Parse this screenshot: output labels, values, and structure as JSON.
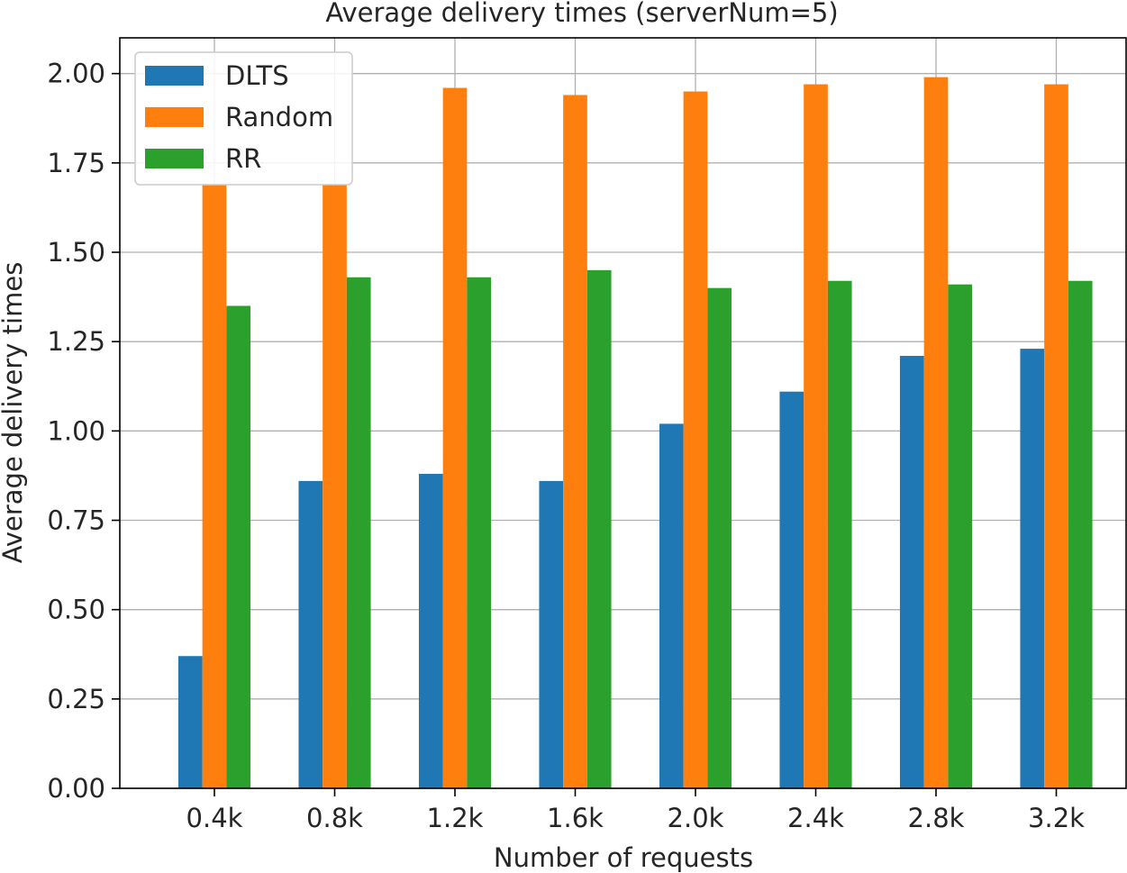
{
  "chart_data": {
    "type": "bar",
    "title": "Average delivery times (serverNum=5)",
    "xlabel": "Number of requests",
    "ylabel": "Average delivery times",
    "categories": [
      "0.4k",
      "0.8k",
      "1.2k",
      "1.6k",
      "2.0k",
      "2.4k",
      "2.8k",
      "3.2k"
    ],
    "series": [
      {
        "name": "DLTS",
        "color": "#1f77b4",
        "values": [
          0.37,
          0.86,
          0.88,
          0.86,
          1.02,
          1.11,
          1.21,
          1.23
        ]
      },
      {
        "name": "Random",
        "color": "#ff7f0e",
        "values": [
          1.69,
          1.69,
          1.96,
          1.94,
          1.95,
          1.97,
          1.99,
          1.97
        ]
      },
      {
        "name": "RR",
        "color": "#2ca02c",
        "values": [
          1.35,
          1.43,
          1.43,
          1.45,
          1.4,
          1.42,
          1.41,
          1.42
        ]
      }
    ],
    "ylim": [
      0,
      2.1
    ],
    "yticks": [
      "0.00",
      "0.25",
      "0.50",
      "0.75",
      "1.00",
      "1.25",
      "1.50",
      "1.75",
      "2.00"
    ],
    "grid": true,
    "legend_position": "top-left"
  }
}
